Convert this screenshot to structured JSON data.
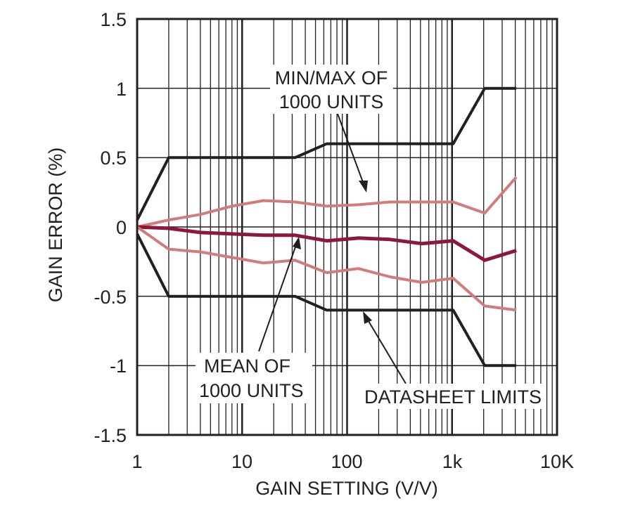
{
  "chart_data": {
    "type": "line",
    "xlabel": "GAIN SETTING (V/V)",
    "ylabel": "GAIN ERROR (%)",
    "xscale": "log",
    "xlim": [
      1,
      10000
    ],
    "ylim": [
      -1.5,
      1.5
    ],
    "x_tick_labels": [
      "1",
      "10",
      "100",
      "1k",
      "10K"
    ],
    "y_tick_labels": [
      "1.5",
      "1",
      "0.5",
      "0",
      "-0.5",
      "-1",
      "-1.5"
    ],
    "grid": true,
    "colors": {
      "limits": "#231f20",
      "minmax": "#d17c7c",
      "mean": "#8b1a3a",
      "grid": "#231f20"
    },
    "series": [
      {
        "key": "upper_limit",
        "color": "#231f20",
        "x": [
          1,
          2,
          32,
          64,
          1024,
          2048,
          4096
        ],
        "y": [
          0.05,
          0.5,
          0.5,
          0.6,
          0.6,
          1.0,
          1.0
        ]
      },
      {
        "key": "lower_limit",
        "color": "#231f20",
        "x": [
          1,
          2,
          32,
          64,
          1024,
          2048,
          4096
        ],
        "y": [
          -0.05,
          -0.5,
          -0.5,
          -0.6,
          -0.6,
          -1.0,
          -1.0
        ]
      },
      {
        "key": "max",
        "color": "#d17c7c",
        "x": [
          1,
          2,
          4,
          8,
          16,
          32,
          64,
          128,
          256,
          512,
          1024,
          2048,
          4096
        ],
        "y": [
          0.0,
          0.05,
          0.09,
          0.15,
          0.19,
          0.18,
          0.15,
          0.16,
          0.18,
          0.18,
          0.18,
          0.1,
          0.36
        ]
      },
      {
        "key": "mean",
        "color": "#8b1a3a",
        "x": [
          1,
          2,
          4,
          8,
          16,
          32,
          64,
          128,
          256,
          512,
          1024,
          2048,
          4096
        ],
        "y": [
          0.0,
          -0.01,
          -0.04,
          -0.05,
          -0.06,
          -0.06,
          -0.1,
          -0.08,
          -0.09,
          -0.12,
          -0.1,
          -0.24,
          -0.17
        ]
      },
      {
        "key": "min",
        "color": "#d17c7c",
        "x": [
          1,
          2,
          4,
          8,
          16,
          32,
          64,
          128,
          256,
          512,
          1024,
          2048,
          4096
        ],
        "y": [
          0.0,
          -0.16,
          -0.18,
          -0.22,
          -0.26,
          -0.24,
          -0.33,
          -0.3,
          -0.36,
          -0.4,
          -0.37,
          -0.57,
          -0.6
        ]
      }
    ],
    "annotations": [
      {
        "key": "minmax",
        "lines": [
          "MIN/MAX OF",
          "1000 UNITS"
        ]
      },
      {
        "key": "mean",
        "lines": [
          "MEAN OF",
          "1000 UNITS"
        ]
      },
      {
        "key": "limits",
        "lines": [
          "DATASHEET LIMITS"
        ]
      }
    ]
  }
}
